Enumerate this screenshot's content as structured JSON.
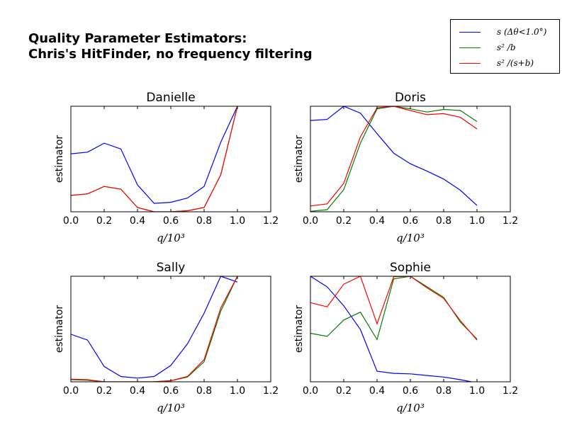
{
  "title_lines": [
    "Quality Parameter Estimators:",
    "Chris's HitFinder, no frequency filtering"
  ],
  "legend": [
    {
      "label": "s (Δθ<1.0°)",
      "color": "#0000ff"
    },
    {
      "label": "s² /b",
      "color": "#008000"
    },
    {
      "label": "s² /(s+b)",
      "color": "#ff0000"
    }
  ],
  "chart_data": [
    {
      "type": "line",
      "title": "Danielle",
      "xlabel": "q/10³",
      "ylabel": "estimator",
      "xlim": [
        0.0,
        1.2
      ],
      "ylim": [
        0,
        1
      ],
      "xticks": [
        "0.0",
        "0.2",
        "0.4",
        "0.6",
        "0.8",
        "1.0",
        "1.2"
      ],
      "x": [
        0.0,
        0.1,
        0.2,
        0.3,
        0.4,
        0.5,
        0.6,
        0.7,
        0.8,
        0.9,
        1.0
      ],
      "series": [
        {
          "values": [
            0.55,
            0.565,
            0.65,
            0.595,
            0.255,
            0.08,
            0.09,
            0.13,
            0.24,
            0.66,
            1.0
          ],
          "color": "#0000ff"
        },
        {
          "values": [
            0.155,
            0.17,
            0.24,
            0.215,
            0.04,
            0.0,
            0.0,
            0.01,
            0.04,
            0.35,
            1.0
          ],
          "color": "#008000"
        },
        {
          "values": [
            0.155,
            0.17,
            0.24,
            0.215,
            0.04,
            0.0,
            0.0,
            0.01,
            0.04,
            0.35,
            1.0
          ],
          "color": "#ff0000"
        }
      ]
    },
    {
      "type": "line",
      "title": "Doris",
      "xlabel": "q/10³",
      "ylabel": "estimator",
      "xlim": [
        0.0,
        1.2
      ],
      "ylim": [
        0,
        1
      ],
      "xticks": [
        "0.0",
        "0.2",
        "0.4",
        "0.6",
        "0.8",
        "1.0",
        "1.2"
      ],
      "x": [
        0.0,
        0.1,
        0.2,
        0.3,
        0.4,
        0.5,
        0.6,
        0.7,
        0.8,
        0.9,
        1.0
      ],
      "series": [
        {
          "values": [
            0.865,
            0.875,
            1.0,
            0.935,
            0.74,
            0.555,
            0.455,
            0.385,
            0.31,
            0.205,
            0.06
          ],
          "color": "#0000ff"
        },
        {
          "values": [
            0.005,
            0.02,
            0.21,
            0.65,
            0.975,
            1.0,
            0.975,
            0.945,
            0.97,
            0.96,
            0.855
          ],
          "color": "#008000"
        },
        {
          "values": [
            0.055,
            0.075,
            0.27,
            0.71,
            0.985,
            1.0,
            0.96,
            0.92,
            0.93,
            0.895,
            0.785
          ],
          "color": "#ff0000"
        }
      ]
    },
    {
      "type": "line",
      "title": "Sally",
      "xlabel": "q/10³",
      "ylabel": "estimator",
      "xlim": [
        0.0,
        1.2
      ],
      "ylim": [
        0,
        1
      ],
      "xticks": [
        "0.0",
        "0.2",
        "0.4",
        "0.6",
        "0.8",
        "1.0",
        "1.2"
      ],
      "x": [
        0.0,
        0.1,
        0.2,
        0.3,
        0.4,
        0.5,
        0.6,
        0.7,
        0.8,
        0.9,
        1.0
      ],
      "series": [
        {
          "values": [
            0.45,
            0.395,
            0.145,
            0.05,
            0.035,
            0.05,
            0.155,
            0.36,
            0.65,
            1.0,
            0.945
          ],
          "color": "#0000ff"
        },
        {
          "values": [
            0.02,
            0.015,
            0.0,
            0.0,
            0.0,
            0.0,
            0.01,
            0.045,
            0.19,
            0.67,
            1.0
          ],
          "color": "#008000"
        },
        {
          "values": [
            0.025,
            0.02,
            0.0,
            0.0,
            0.0,
            0.0,
            0.01,
            0.05,
            0.21,
            0.7,
            1.0
          ],
          "color": "#ff0000"
        }
      ]
    },
    {
      "type": "line",
      "title": "Sophie",
      "xlabel": "q/10³",
      "ylabel": "estimator",
      "xlim": [
        0.0,
        1.2
      ],
      "ylim": [
        0,
        1
      ],
      "xticks": [
        "0.0",
        "0.2",
        "0.4",
        "0.6",
        "0.8",
        "1.0",
        "1.2"
      ],
      "x": [
        0.0,
        0.1,
        0.2,
        0.3,
        0.4,
        0.5,
        0.6,
        0.7,
        0.8,
        0.9,
        1.0
      ],
      "series": [
        {
          "values": [
            1.0,
            0.9,
            0.72,
            0.495,
            0.1,
            0.08,
            0.075,
            0.06,
            0.045,
            0.02,
            -0.01
          ],
          "color": "#0000ff"
        },
        {
          "values": [
            0.46,
            0.43,
            0.585,
            0.66,
            0.4,
            0.975,
            1.0,
            0.9,
            0.8,
            0.565,
            0.405
          ],
          "color": "#008000"
        },
        {
          "values": [
            0.75,
            0.71,
            0.925,
            1.0,
            0.55,
            0.995,
            1.0,
            0.89,
            0.79,
            0.58,
            0.395
          ],
          "color": "#ff0000"
        }
      ]
    }
  ]
}
